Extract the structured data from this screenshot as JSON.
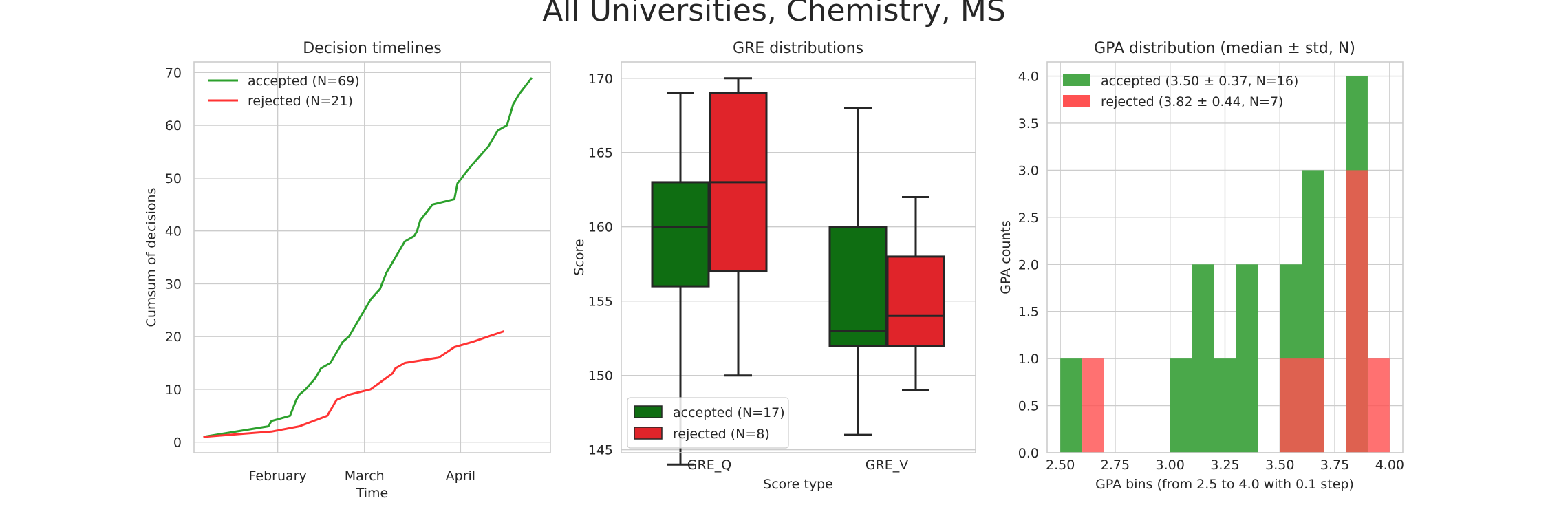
{
  "figure": {
    "title": "All Universities, Chemistry, MS",
    "colors": {
      "accepted_line": "#2ca02c",
      "rejected_line": "#ff3333",
      "accepted_box": "#0f6e12",
      "rejected_box": "#e0242a",
      "accepted_hist": "#4aa84a",
      "rejected_hist": "#ff5252",
      "grid": "#cccccc"
    }
  },
  "chart_data": [
    {
      "type": "line",
      "title": "Decision timelines",
      "xlabel": "Time",
      "ylabel": "Cumsum of decisions",
      "x_tick_labels": [
        "February",
        "March",
        "April"
      ],
      "ylim": [
        -2,
        72
      ],
      "yticks": [
        0,
        10,
        20,
        30,
        40,
        50,
        60,
        70
      ],
      "grid": true,
      "legend_position": "top-left",
      "series": [
        {
          "name": "accepted (N=69)",
          "color": "#2ca02c",
          "x": [
            "2019-01-08",
            "2019-01-29",
            "2019-01-30",
            "2019-02-05",
            "2019-02-07",
            "2019-02-08",
            "2019-02-10",
            "2019-02-13",
            "2019-02-15",
            "2019-02-18",
            "2019-02-21",
            "2019-02-22",
            "2019-02-24",
            "2019-02-25",
            "2019-02-28",
            "2019-03-01",
            "2019-03-03",
            "2019-03-06",
            "2019-03-08",
            "2019-03-09",
            "2019-03-11",
            "2019-03-14",
            "2019-03-17",
            "2019-03-18",
            "2019-03-19",
            "2019-03-23",
            "2019-03-30",
            "2019-03-31",
            "2019-04-04",
            "2019-04-10",
            "2019-04-11",
            "2019-04-13",
            "2019-04-16",
            "2019-04-17",
            "2019-04-18",
            "2019-04-20",
            "2019-04-24"
          ],
          "y": [
            1,
            3,
            4,
            5,
            8,
            9,
            10,
            12,
            14,
            15,
            18,
            19,
            20,
            21,
            24,
            25,
            27,
            29,
            32,
            33,
            35,
            38,
            39,
            40,
            42,
            45,
            46,
            49,
            52,
            56,
            57,
            59,
            60,
            62,
            64,
            66,
            69
          ]
        },
        {
          "name": "rejected (N=21)",
          "color": "#ff3333",
          "x": [
            "2019-01-08",
            "2019-01-30",
            "2019-02-08",
            "2019-02-17",
            "2019-02-20",
            "2019-02-24",
            "2019-03-03",
            "2019-03-10",
            "2019-03-11",
            "2019-03-14",
            "2019-03-25",
            "2019-03-30",
            "2019-04-05",
            "2019-04-10",
            "2019-04-15"
          ],
          "y": [
            1,
            2,
            3,
            5,
            8,
            9,
            10,
            13,
            14,
            15,
            16,
            18,
            19,
            20,
            21
          ]
        }
      ]
    },
    {
      "type": "box",
      "title": "GRE distributions",
      "xlabel": "Score type",
      "ylabel": "Score",
      "categories": [
        "GRE_Q",
        "GRE_V"
      ],
      "ylim": [
        144.8,
        171.1
      ],
      "yticks": [
        145,
        150,
        155,
        160,
        165,
        170
      ],
      "grid": true,
      "legend_position": "bottom-left",
      "series": [
        {
          "name": "accepted (N=17)",
          "color": "#0f6e12",
          "boxes": [
            {
              "whislo": 144,
              "q1": 156,
              "med": 160,
              "q3": 163,
              "whishi": 169
            },
            {
              "whislo": 146,
              "q1": 152,
              "med": 153,
              "q3": 160,
              "whishi": 168
            }
          ]
        },
        {
          "name": "rejected (N=8)",
          "color": "#e0242a",
          "boxes": [
            {
              "whislo": 150,
              "q1": 157,
              "med": 163,
              "q3": 169,
              "whishi": 170
            },
            {
              "whislo": 149,
              "q1": 152,
              "med": 154,
              "q3": 158,
              "whishi": 162
            }
          ]
        }
      ]
    },
    {
      "type": "bar",
      "title": "GPA distribution (median ± std, N)",
      "xlabel": "GPA bins (from 2.5 to 4.0 with 0.1 step)",
      "ylabel": "GPA counts",
      "xlim": [
        2.44,
        4.06
      ],
      "xticks": [
        "2.50",
        "2.75",
        "3.00",
        "3.25",
        "3.50",
        "3.75",
        "4.00"
      ],
      "ylim": [
        0,
        4.15
      ],
      "yticks": [
        "0.0",
        "0.5",
        "1.0",
        "1.5",
        "2.0",
        "2.5",
        "3.0",
        "3.5",
        "4.0"
      ],
      "grid": true,
      "legend_position": "top-left",
      "series": [
        {
          "name": "accepted (3.50 ± 0.37, N=16)",
          "color": "#4aa84a",
          "bins": [
            [
              2.5,
              2.6,
              1
            ],
            [
              3.0,
              3.1,
              1
            ],
            [
              3.1,
              3.2,
              2
            ],
            [
              3.2,
              3.3,
              1
            ],
            [
              3.3,
              3.4,
              2
            ],
            [
              3.5,
              3.6,
              2
            ],
            [
              3.6,
              3.7,
              3
            ],
            [
              3.8,
              3.9,
              4
            ]
          ]
        },
        {
          "name": "rejected (3.82 ± 0.44, N=7)",
          "color": "#ff5252",
          "bins": [
            [
              2.6,
              2.7,
              1
            ],
            [
              3.5,
              3.6,
              1
            ],
            [
              3.6,
              3.7,
              1
            ],
            [
              3.8,
              3.9,
              3
            ],
            [
              3.9,
              4.0,
              1
            ]
          ]
        }
      ]
    }
  ]
}
